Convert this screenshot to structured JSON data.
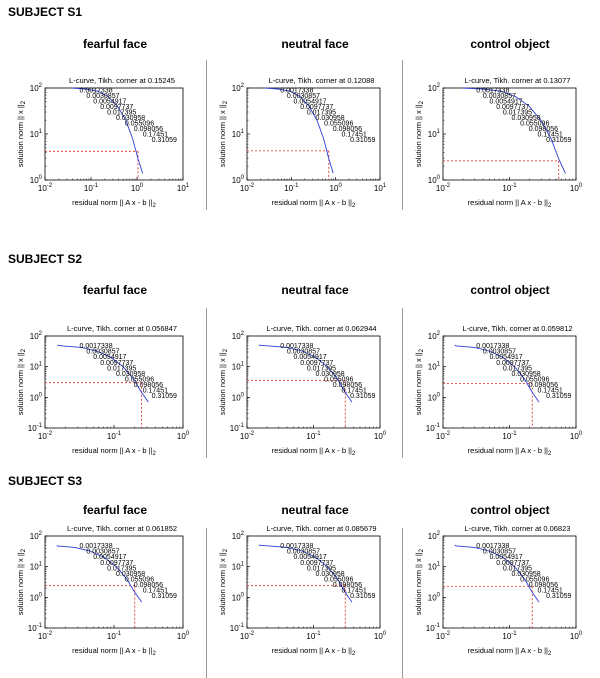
{
  "subjects": [
    {
      "label": "SUBJECT S1",
      "panels": [
        {
          "condition": "fearful  face",
          "corner_text": "L-curve, Tikh. corner at 0.15245",
          "ylim_exp": [
            0,
            2
          ],
          "xlim_exp": [
            -2,
            1
          ],
          "corner_x": 1.05,
          "corner_y": 4.2
        },
        {
          "condition": "neutral  face",
          "corner_text": "L-curve, Tikh. corner at 0.12088",
          "ylim_exp": [
            0,
            2
          ],
          "xlim_exp": [
            -2,
            1
          ],
          "corner_x": 0.7,
          "corner_y": 4.3
        },
        {
          "condition": "control object",
          "corner_text": "L-curve, Tikh. corner at 0.13077",
          "ylim_exp": [
            0,
            2
          ],
          "xlim_exp": [
            -2,
            0
          ],
          "corner_x": 0.55,
          "corner_y": 2.6
        }
      ]
    },
    {
      "label": "SUBJECT S2",
      "panels": [
        {
          "condition": "fearful  face",
          "corner_text": "L-curve, Tikh. corner at 0.056847",
          "ylim_exp": [
            -1,
            2
          ],
          "xlim_exp": [
            -2,
            0
          ],
          "corner_x": 0.25,
          "corner_y": 3.0
        },
        {
          "condition": "neutral  face",
          "corner_text": "L-curve, Tikh. corner at 0.062944",
          "ylim_exp": [
            -1,
            2
          ],
          "xlim_exp": [
            -2,
            0
          ],
          "corner_x": 0.3,
          "corner_y": 3.5
        },
        {
          "condition": "control object",
          "corner_text": "L-curve, Tikh. corner at 0.059812",
          "ylim_exp": [
            -1,
            2
          ],
          "xlim_exp": [
            -2,
            0
          ],
          "corner_x": 0.22,
          "corner_y": 2.8
        }
      ]
    },
    {
      "label": "SUBJECT S3",
      "panels": [
        {
          "condition": "fearful  face",
          "corner_text": "L-curve, Tikh. corner at 0.061852",
          "ylim_exp": [
            -1,
            2
          ],
          "xlim_exp": [
            -2,
            0
          ],
          "corner_x": 0.2,
          "corner_y": 2.4
        },
        {
          "condition": "neutral  face",
          "corner_text": "L-curve, Tikh. corner at 0.085679",
          "ylim_exp": [
            -1,
            2
          ],
          "xlim_exp": [
            -2,
            0
          ],
          "corner_x": 0.3,
          "corner_y": 2.4
        },
        {
          "condition": "control object",
          "corner_text": "L-curve, Tikh. corner at 0.06823",
          "ylim_exp": [
            -1,
            2
          ],
          "xlim_exp": [
            -2,
            0
          ],
          "corner_x": 0.22,
          "corner_y": 2.3
        }
      ]
    }
  ],
  "chart_data": {
    "type": "line",
    "title": "L-curve, Tikh. corner",
    "xlabel": "residual norm || A x - b ||",
    "xlabel_subscript": "2",
    "ylabel": "solution norm || x ||",
    "ylabel_subscript": "2",
    "xscale": "log",
    "yscale": "log",
    "curve_x": [
      0.04,
      0.08,
      0.15,
      0.25,
      0.4,
      0.6,
      0.85,
      1.1,
      1.4
    ],
    "curve_y": [
      100,
      95,
      85,
      65,
      40,
      20,
      8,
      3,
      1.4
    ],
    "point_labels": [
      "0.0017338",
      "0.0030857",
      "0.0054917",
      "0.0097737",
      "0.017395",
      "0.030958",
      "0.055096",
      "0.098056",
      "0.17451",
      "0.31059"
    ],
    "colors": {
      "curve": "#2b3fd6",
      "corner": "#e0261b",
      "axis": "#000000"
    }
  }
}
